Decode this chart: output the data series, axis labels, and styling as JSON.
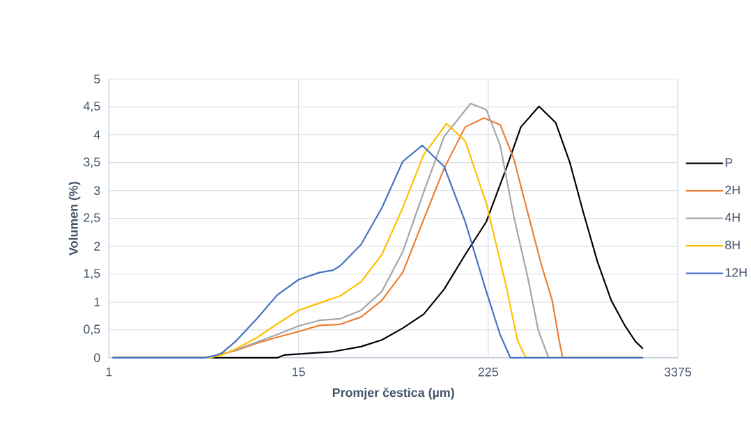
{
  "chart_data": {
    "type": "line",
    "xlabel": "Promjer čestica (µm)",
    "ylabel": "Volumen (%)",
    "log": "x",
    "xlim": [
      1,
      3375
    ],
    "xticks": [
      1,
      15,
      225,
      3375
    ],
    "ylim": [
      0,
      5
    ],
    "yticks": [
      0,
      {
        "value": 0.5,
        "label": "0,5"
      },
      1,
      {
        "value": 1.5,
        "label": "1,5"
      },
      2,
      {
        "value": 2.5,
        "label": "2,5"
      },
      3,
      {
        "value": 3.5,
        "label": "3,5"
      },
      4,
      {
        "value": 4.5,
        "label": "4,5"
      },
      5
    ],
    "grid": true,
    "legend": "right",
    "marker": "none",
    "line_style": "solid",
    "series": [
      {
        "name": "P",
        "color": "#000000",
        "x": [
          1.06,
          11.1,
          12.3,
          24.6,
          36.6,
          49.3,
          66.4,
          89.5,
          120,
          162,
          219,
          294,
          359,
          465,
          589,
          719,
          877,
          1069,
          1303,
          1589,
          1845,
          2036
        ],
        "values": [
          0,
          0,
          0.05,
          0.11,
          0.2,
          0.32,
          0.53,
          0.78,
          1.23,
          1.85,
          2.44,
          3.43,
          4.14,
          4.51,
          4.22,
          3.52,
          2.6,
          1.73,
          1.03,
          0.57,
          0.29,
          0.17
        ]
      },
      {
        "name": "2H",
        "color": "#ED7D31",
        "x": [
          1.06,
          4.13,
          6.14,
          8.27,
          11.1,
          15,
          20.2,
          27.2,
          36.6,
          49.3,
          66.4,
          89.5,
          120,
          162,
          212,
          267,
          325,
          396,
          483,
          561,
          619,
          651,
          2036
        ],
        "values": [
          0,
          0,
          0.13,
          0.26,
          0.37,
          0.47,
          0.58,
          0.6,
          0.73,
          1.03,
          1.53,
          2.48,
          3.4,
          4.14,
          4.3,
          4.18,
          3.56,
          2.6,
          1.65,
          1.03,
          0.32,
          0,
          0
        ]
      },
      {
        "name": "4H",
        "color": "#A5A5A5",
        "x": [
          1.06,
          4.26,
          6.14,
          8.27,
          11.1,
          15,
          20.2,
          27.2,
          36.6,
          49.3,
          66.4,
          89.5,
          120,
          175,
          219,
          267,
          325,
          396,
          460,
          533,
          2036
        ],
        "values": [
          0,
          0,
          0.14,
          0.28,
          0.42,
          0.57,
          0.67,
          0.7,
          0.85,
          1.19,
          1.9,
          2.97,
          3.97,
          4.56,
          4.45,
          3.81,
          2.52,
          1.44,
          0.49,
          0,
          0
        ]
      },
      {
        "name": "8H",
        "color": "#FFC000",
        "x": [
          1.06,
          4.13,
          5.04,
          6.14,
          8.27,
          11.1,
          15,
          20.2,
          27.2,
          36.6,
          49.3,
          66.4,
          89.5,
          124,
          162,
          219,
          294,
          341,
          385,
          2036
        ],
        "values": [
          0,
          0,
          0.05,
          0.16,
          0.36,
          0.61,
          0.85,
          0.98,
          1.11,
          1.36,
          1.85,
          2.69,
          3.64,
          4.2,
          3.89,
          2.77,
          1.23,
          0.32,
          0,
          0
        ]
      },
      {
        "name": "12H",
        "color": "#4472C4",
        "x": [
          1.06,
          3.93,
          4.56,
          5.04,
          6.14,
          8.27,
          11.1,
          15,
          20.2,
          24.6,
          27.2,
          36.6,
          49.3,
          66.4,
          87.7,
          120,
          162,
          219,
          267,
          309,
          2036
        ],
        "values": [
          0,
          0,
          0.04,
          0.09,
          0.3,
          0.7,
          1.13,
          1.4,
          1.53,
          1.57,
          1.65,
          2.03,
          2.69,
          3.52,
          3.81,
          3.43,
          2.44,
          1.19,
          0.41,
          0,
          0
        ]
      }
    ]
  }
}
